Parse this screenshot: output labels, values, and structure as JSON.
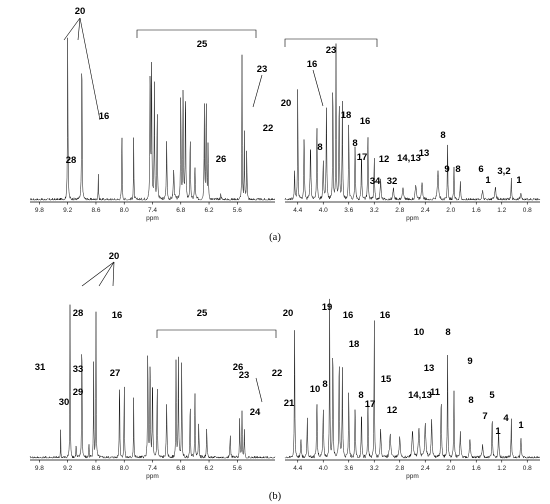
{
  "chart_data": [
    {
      "type": "line",
      "panel": "(a)",
      "subplots": [
        {
          "xlabel": "ppm",
          "xlim": [
            10.0,
            4.8
          ],
          "ticks": [
            "9.8",
            "9.2",
            "8.6",
            "8.0",
            "7.4",
            "6.8",
            "6.2",
            "5.6"
          ],
          "peak_labels": [
            "20",
            "28",
            "16",
            "25",
            "26",
            "23",
            "22"
          ]
        },
        {
          "xlabel": "ppm",
          "xlim": [
            4.6,
            0.6
          ],
          "ticks": [
            "4.4",
            "4.0",
            "3.6",
            "3.2",
            "2.8",
            "2.4",
            "2.0",
            "1.6",
            "1.2",
            "0.8"
          ],
          "peak_labels": [
            "23",
            "16",
            "20",
            "8",
            "18",
            "8",
            "16",
            "17",
            "34",
            "12",
            "32",
            "14,13",
            "13",
            "8",
            "9",
            "8",
            "6",
            "1",
            "3,2",
            "1"
          ]
        }
      ]
    },
    {
      "type": "line",
      "panel": "(b)",
      "subplots": [
        {
          "xlabel": "ppm",
          "xlim": [
            10.0,
            4.8
          ],
          "ticks": [
            "9.8",
            "9.2",
            "8.6",
            "8.0",
            "7.4",
            "6.8",
            "6.2",
            "5.6"
          ],
          "peak_labels": [
            "20",
            "31",
            "28",
            "33",
            "30",
            "29",
            "16",
            "27",
            "25",
            "26",
            "23",
            "24",
            "22"
          ]
        },
        {
          "xlabel": "ppm",
          "xlim": [
            4.6,
            0.6
          ],
          "ticks": [
            "4.4",
            "4.0",
            "3.6",
            "3.2",
            "2.8",
            "2.4",
            "2.0",
            "1.6",
            "1.2",
            "0.8"
          ],
          "peak_labels": [
            "20",
            "19",
            "16",
            "16",
            "21",
            "10",
            "8",
            "18",
            "8",
            "17",
            "15",
            "12",
            "14,13",
            "13",
            "11",
            "10",
            "8",
            "9",
            "8",
            "7",
            "5",
            "1",
            "4",
            "1"
          ]
        }
      ]
    }
  ],
  "captions": {
    "a": "(a)",
    "b": "(b)"
  }
}
